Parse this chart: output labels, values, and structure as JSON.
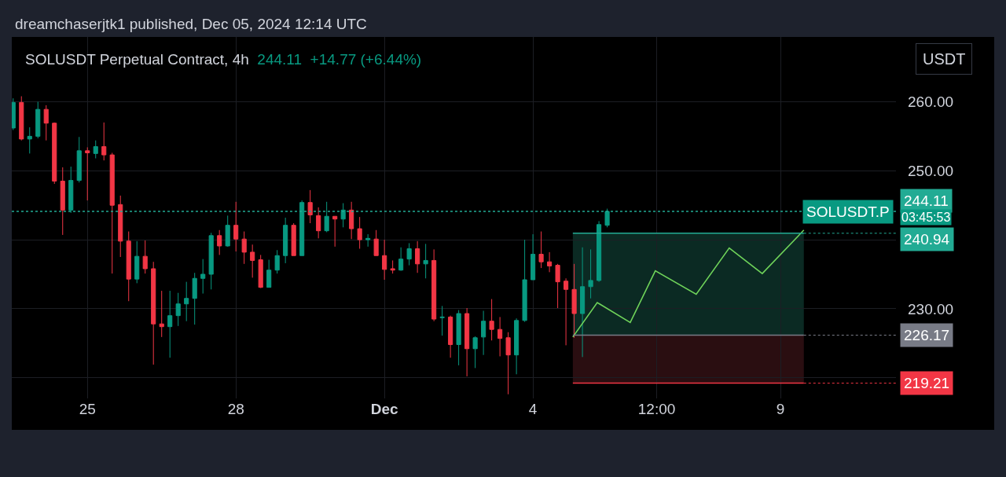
{
  "chart_data": {
    "type": "candlestick",
    "title": "SOLUSDT Perpetual Contract, 4h",
    "subtitle": "244.11  +14.77 (+6.44%)",
    "annotations": [
      "dreamchaserjtk1 published, Dec 05, 2024 12:14 UTC",
      "USDT",
      "SOLUSDT.P",
      "03:45:53"
    ],
    "x": [
      "2024-11-23T12:00",
      "2024-11-23T16:00",
      "2024-11-23T20:00",
      "2024-11-24T00:00",
      "2024-11-24T04:00",
      "2024-11-24T08:00",
      "2024-11-24T12:00",
      "2024-11-24T16:00",
      "2024-11-24T20:00",
      "2024-11-25T00:00",
      "2024-11-25T04:00",
      "2024-11-25T08:00",
      "2024-11-25T12:00",
      "2024-11-25T16:00",
      "2024-11-25T20:00",
      "2024-11-26T00:00",
      "2024-11-26T04:00",
      "2024-11-26T08:00",
      "2024-11-26T12:00",
      "2024-11-26T16:00",
      "2024-11-26T20:00",
      "2024-11-27T00:00",
      "2024-11-27T04:00",
      "2024-11-27T08:00",
      "2024-11-27T12:00",
      "2024-11-27T16:00",
      "2024-11-27T20:00",
      "2024-11-28T00:00",
      "2024-11-28T04:00",
      "2024-11-28T08:00",
      "2024-11-28T12:00",
      "2024-11-28T16:00",
      "2024-11-28T20:00",
      "2024-11-29T00:00",
      "2024-11-29T04:00",
      "2024-11-29T08:00",
      "2024-11-29T12:00",
      "2024-11-29T16:00",
      "2024-11-29T20:00",
      "2024-11-30T00:00",
      "2024-11-30T04:00",
      "2024-11-30T08:00",
      "2024-11-30T12:00",
      "2024-11-30T16:00",
      "2024-11-30T20:00",
      "2024-12-01T00:00",
      "2024-12-01T04:00",
      "2024-12-01T08:00",
      "2024-12-01T12:00",
      "2024-12-01T16:00",
      "2024-12-01T20:00",
      "2024-12-02T00:00",
      "2024-12-02T04:00",
      "2024-12-02T08:00",
      "2024-12-02T12:00",
      "2024-12-02T16:00",
      "2024-12-02T20:00",
      "2024-12-03T00:00",
      "2024-12-03T04:00",
      "2024-12-03T08:00",
      "2024-12-03T12:00",
      "2024-12-03T16:00",
      "2024-12-03T20:00",
      "2024-12-04T00:00",
      "2024-12-04T04:00",
      "2024-12-04T08:00",
      "2024-12-04T12:00",
      "2024-12-04T16:00",
      "2024-12-04T20:00",
      "2024-12-05T00:00",
      "2024-12-05T04:00",
      "2024-12-05T08:00",
      "2024-12-05T12:00"
    ],
    "ohlc": [
      [
        256.2,
        260.5,
        255.9,
        259.9
      ],
      [
        259.9,
        260.8,
        254.4,
        254.6
      ],
      [
        254.6,
        256.3,
        252.5,
        255.0
      ],
      [
        255.0,
        260.0,
        254.7,
        258.9
      ],
      [
        258.9,
        259.5,
        254.4,
        256.9
      ],
      [
        256.9,
        257.0,
        248.1,
        248.5
      ],
      [
        248.5,
        250.5,
        240.7,
        244.3
      ],
      [
        244.3,
        250.6,
        243.9,
        248.6
      ],
      [
        248.6,
        254.9,
        248.3,
        252.9
      ],
      [
        252.9,
        253.4,
        245.7,
        252.6
      ],
      [
        252.5,
        254.4,
        251.8,
        253.5
      ],
      [
        253.5,
        257.0,
        251.5,
        252.3
      ],
      [
        252.3,
        252.6,
        235.1,
        245.0
      ],
      [
        245.1,
        246.4,
        237.5,
        239.8
      ],
      [
        239.8,
        241.2,
        231.1,
        234.3
      ],
      [
        234.3,
        239.8,
        233.7,
        237.6
      ],
      [
        237.6,
        239.9,
        235.1,
        235.8
      ],
      [
        235.8,
        236.8,
        221.9,
        227.8
      ],
      [
        227.8,
        232.6,
        225.9,
        227.4
      ],
      [
        227.4,
        232.6,
        222.9,
        229.0
      ],
      [
        229.0,
        232.3,
        227.5,
        230.7
      ],
      [
        230.7,
        233.9,
        228.2,
        231.5
      ],
      [
        231.5,
        235.2,
        227.7,
        234.4
      ],
      [
        234.4,
        237.2,
        232.2,
        235.0
      ],
      [
        235.0,
        241.0,
        232.8,
        240.6
      ],
      [
        240.6,
        241.4,
        237.8,
        239.1
      ],
      [
        239.1,
        243.5,
        239.0,
        242.1
      ],
      [
        242.1,
        245.5,
        238.3,
        240.1
      ],
      [
        240.1,
        241.2,
        236.5,
        238.2
      ],
      [
        238.2,
        239.3,
        234.5,
        237.0
      ],
      [
        237.1,
        237.8,
        233.0,
        233.1
      ],
      [
        233.1,
        237.1,
        233.1,
        235.6
      ],
      [
        235.6,
        238.5,
        235.1,
        237.7
      ],
      [
        237.7,
        243.2,
        236.6,
        242.1
      ],
      [
        242.1,
        242.4,
        237.7,
        237.7
      ],
      [
        237.7,
        245.7,
        237.7,
        245.4
      ],
      [
        245.4,
        247.2,
        242.4,
        243.6
      ],
      [
        243.5,
        244.7,
        240.2,
        241.3
      ],
      [
        241.3,
        245.5,
        241.1,
        243.4
      ],
      [
        243.4,
        243.4,
        239.0,
        243.0
      ],
      [
        243.0,
        245.3,
        241.8,
        244.3
      ],
      [
        244.3,
        245.5,
        240.1,
        241.6
      ],
      [
        241.6,
        243.3,
        238.7,
        240.0
      ],
      [
        240.0,
        240.8,
        239.0,
        240.2
      ],
      [
        240.1,
        241.4,
        237.7,
        237.7
      ],
      [
        237.7,
        240.0,
        234.2,
        235.7
      ],
      [
        235.8,
        237.0,
        235.1,
        235.6
      ],
      [
        235.6,
        238.9,
        235.5,
        237.2
      ],
      [
        237.2,
        239.5,
        236.3,
        238.7
      ],
      [
        238.7,
        239.8,
        235.2,
        236.5
      ],
      [
        236.5,
        239.4,
        234.4,
        237.0
      ],
      [
        237.0,
        238.6,
        228.2,
        228.5
      ],
      [
        228.7,
        230.4,
        226.1,
        228.8
      ],
      [
        228.8,
        229.0,
        222.9,
        224.8
      ],
      [
        224.8,
        229.8,
        221.8,
        229.3
      ],
      [
        229.3,
        230.1,
        220.2,
        224.2
      ],
      [
        224.2,
        226.0,
        221.4,
        225.8
      ],
      [
        225.9,
        229.7,
        223.3,
        228.2
      ],
      [
        228.2,
        231.4,
        225.4,
        227.0
      ],
      [
        227.0,
        228.8,
        223.1,
        225.7
      ],
      [
        225.8,
        226.6,
        217.6,
        223.3
      ],
      [
        223.3,
        228.6,
        220.5,
        228.3
      ],
      [
        228.3,
        240.0,
        228.1,
        234.2
      ],
      [
        234.2,
        240.8,
        234.2,
        237.9
      ],
      [
        237.9,
        241.2,
        235.9,
        236.8
      ],
      [
        236.8,
        238.2,
        235.3,
        236.2
      ],
      [
        236.3,
        236.5,
        230.1,
        233.9
      ],
      [
        234.0,
        234.4,
        224.7,
        232.8
      ],
      [
        232.8,
        236.5,
        225.8,
        229.3
      ],
      [
        229.3,
        238.9,
        223.0,
        233.2
      ],
      [
        233.2,
        238.6,
        231.5,
        234.1
      ],
      [
        234.1,
        242.7,
        233.9,
        242.2
      ],
      [
        242.1,
        244.5,
        241.8,
        244.11
      ]
    ],
    "colors": [
      "#089981",
      "#f23645",
      "#089981",
      "#089981",
      "#f23645",
      "#f23645",
      "#f23645",
      "#089981",
      "#089981",
      "#f23645",
      "#089981",
      "#f23645",
      "#f23645",
      "#f23645",
      "#f23645",
      "#089981",
      "#f23645",
      "#f23645",
      "#f23645",
      "#089981",
      "#089981",
      "#089981",
      "#089981",
      "#089981",
      "#089981",
      "#f23645",
      "#089981",
      "#f23645",
      "#f23645",
      "#f23645",
      "#f23645",
      "#089981",
      "#089981",
      "#089981",
      "#f23645",
      "#089981",
      "#f23645",
      "#f23645",
      "#089981",
      "#f23645",
      "#089981",
      "#f23645",
      "#f23645",
      "#089981",
      "#f23645",
      "#f23645",
      "#f23645",
      "#089981",
      "#089981",
      "#f23645",
      "#089981",
      "#f23645",
      "#089981",
      "#f23645",
      "#089981",
      "#f23645",
      "#089981",
      "#089981",
      "#f23645",
      "#f23645",
      "#f23645",
      "#089981",
      "#089981",
      "#089981",
      "#f23645",
      "#f23645",
      "#f23645",
      "#f23645",
      "#f23645",
      "#089981",
      "#089981",
      "#089981",
      "#089981"
    ],
    "series": [
      {
        "type": "line",
        "color": "#6fd35a",
        "x": [
          "2024-12-04T19:20",
          "2024-12-05T07:10",
          "2024-12-05T23:10",
          "2024-12-06T11:20",
          "2024-12-07T07:10",
          "2024-12-07T23:10",
          "2024-12-08T15:10",
          "2024-12-09T11:20"
        ],
        "values": [
          225.9,
          230.9,
          228.0,
          235.5,
          232.1,
          238.8,
          235.1,
          241.4
        ]
      }
    ],
    "bands": [
      {
        "axis": "y",
        "from": 226.17,
        "to": 240.94,
        "color": "#0b2a23"
      },
      {
        "axis": "y",
        "from": 219.21,
        "to": 226.17,
        "color": "#2a0e11"
      }
    ],
    "ref_lines": [
      {
        "axis": "y",
        "value": 244.11,
        "label": "244.11",
        "color": "#22ab94",
        "line_style": "dotted"
      },
      {
        "axis": "y",
        "value": 240.94,
        "label": "240.94",
        "color": "#22ab94"
      },
      {
        "axis": "y",
        "value": 226.17,
        "label": "226.17",
        "color": "#787b86"
      },
      {
        "axis": "y",
        "value": 219.21,
        "label": "219.21",
        "color": "#f23645"
      }
    ],
    "xlim": [
      "2024-11-23T11:20",
      "2024-12-11T08:00"
    ],
    "xticks": [
      {
        "value": "2024-11-25",
        "label": "25"
      },
      {
        "value": "2024-11-28",
        "label": "28"
      },
      {
        "value": "2024-12-01",
        "label": "Dec"
      },
      {
        "value": "2024-12-04",
        "label": "4"
      },
      {
        "value": "2024-12-06T12:00",
        "label": "12:00"
      },
      {
        "value": "2024-12-09",
        "label": "9"
      }
    ],
    "ylim": [
      217.0,
      269.4
    ],
    "yticks": [
      {
        "value": 220,
        "label": null
      },
      {
        "value": 230,
        "label": "230.00"
      },
      {
        "value": 240,
        "label": null
      },
      {
        "value": 250,
        "label": "250.00"
      },
      {
        "value": 260,
        "label": "260.00"
      }
    ],
    "grid": true
  }
}
